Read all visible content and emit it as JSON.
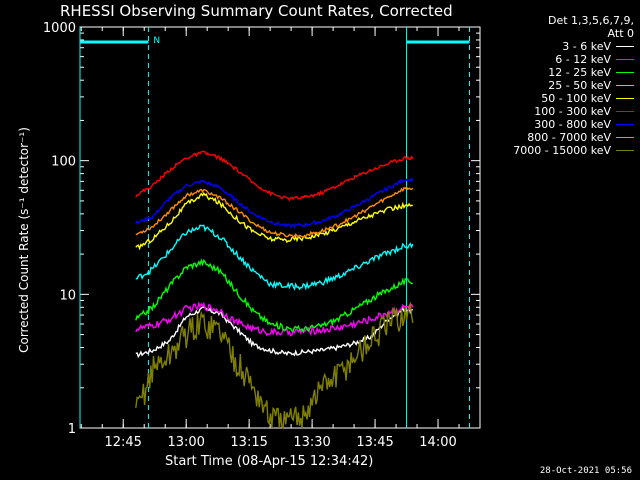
{
  "title": "RHESSI Observing Summary Count Rates, Corrected",
  "stamp": "28-Oct-2021 05:56",
  "legend_header": [
    "Det 1,3,5,6,7,9,",
    "Att 0"
  ],
  "flag_label": "N",
  "colors": {
    "axis": "#ffffff",
    "flag": "#00ffff"
  },
  "chart_data": {
    "type": "line",
    "title": "RHESSI Observing Summary Count Rates, Corrected",
    "xlabel": "Start Time (08-Apr-15 12:34:42)",
    "ylabel": "Corrected Count Rate (s⁻¹ detector⁻¹)",
    "xscale": "time",
    "xlim": [
      "12:34:42",
      "14:10:00"
    ],
    "yscale": "log",
    "ylim": [
      1,
      1000
    ],
    "xticks": [
      "12:45",
      "13:00",
      "13:15",
      "13:30",
      "13:45",
      "14:00"
    ],
    "yticks": [
      {
        "value": 1,
        "label": "1"
      },
      {
        "value": 10,
        "label": "10"
      },
      {
        "value": 100,
        "label": "100"
      },
      {
        "value": 1000,
        "label": "1000"
      }
    ],
    "grid": false,
    "legend_position": "right",
    "flags": [
      {
        "label": "N",
        "solid_at": "12:34:42",
        "dashed_at": "12:51:00",
        "bar": [
          "12:34:42",
          "12:51:00"
        ]
      },
      {
        "label": "",
        "solid_at": "13:52:30",
        "dashed_at": "14:07:30",
        "bar": [
          "13:52:30",
          "14:07:30"
        ]
      }
    ],
    "x": [
      "12:48",
      "12:52",
      "12:56",
      "13:00",
      "13:04",
      "13:08",
      "13:12",
      "13:16",
      "13:20",
      "13:24",
      "13:28",
      "13:32",
      "13:36",
      "13:40",
      "13:44",
      "13:48",
      "13:52",
      "13:54"
    ],
    "series": [
      {
        "name": "3 - 6 keV",
        "color": "#ffffff",
        "values": [
          3.5,
          3.8,
          4.5,
          6.8,
          7.8,
          7.2,
          5.5,
          4.2,
          3.8,
          3.6,
          3.7,
          3.8,
          4.0,
          4.3,
          4.8,
          6.5,
          7.8,
          7.5
        ]
      },
      {
        "name": "6 - 12 keV",
        "color": "#ff00ff",
        "values": [
          5.5,
          5.8,
          6.5,
          7.8,
          8.2,
          7.6,
          6.2,
          5.5,
          5.2,
          5.2,
          5.3,
          5.4,
          5.6,
          6.0,
          6.5,
          7.3,
          8.0,
          8.0
        ]
      },
      {
        "name": "12 - 25 keV",
        "color": "#00ff00",
        "values": [
          6.5,
          8.0,
          11.5,
          16.0,
          17.5,
          15.0,
          10.5,
          7.5,
          6.0,
          5.6,
          5.5,
          5.8,
          6.5,
          7.7,
          9.2,
          10.8,
          12.5,
          12.5
        ]
      },
      {
        "name": "25 - 50 keV",
        "color": "#00ffff",
        "values": [
          13.0,
          15.5,
          21.0,
          29.0,
          32.0,
          27.0,
          20.0,
          15.0,
          12.0,
          11.5,
          11.5,
          12.2,
          13.5,
          15.5,
          18.0,
          20.5,
          23.0,
          23.0
        ]
      },
      {
        "name": "50 - 100 keV",
        "color": "#ffff00",
        "values": [
          22.0,
          26.0,
          34.0,
          47.0,
          56.0,
          48.0,
          37.0,
          29.5,
          26.0,
          25.5,
          26.5,
          28.0,
          31.0,
          35.0,
          39.0,
          43.0,
          46.0,
          46.0
        ]
      },
      {
        "name": "100 - 300 keV",
        "color": "#ff0000",
        "values": [
          55.0,
          65.0,
          85.0,
          105.0,
          115.0,
          105.0,
          86.0,
          68.0,
          57.0,
          52.0,
          53.0,
          57.0,
          65.0,
          75.0,
          85.0,
          95.0,
          105.0,
          105.0
        ]
      },
      {
        "name": "300 - 800 keV",
        "color": "#0000ff",
        "values": [
          34.0,
          38.0,
          52.0,
          65.0,
          70.0,
          63.0,
          50.0,
          40.0,
          35.0,
          32.5,
          33.0,
          35.0,
          39.0,
          45.0,
          53.0,
          62.0,
          72.0,
          72.0
        ]
      },
      {
        "name": "800 - 7000 keV",
        "color": "#ff8c00",
        "values": [
          28.0,
          32.0,
          42.0,
          55.0,
          60.0,
          53.0,
          43.0,
          34.0,
          29.0,
          27.5,
          27.5,
          29.5,
          33.0,
          38.0,
          45.0,
          53.0,
          62.0,
          62.0
        ]
      },
      {
        "name": "7000 - 15000 keV",
        "color": "#808000",
        "values": [
          1.3,
          2.8,
          3.5,
          5.2,
          6.2,
          5.5,
          3.2,
          2.0,
          1.2,
          1.1,
          1.3,
          2.0,
          2.5,
          3.4,
          4.6,
          6.0,
          7.2,
          7.0
        ]
      }
    ]
  }
}
